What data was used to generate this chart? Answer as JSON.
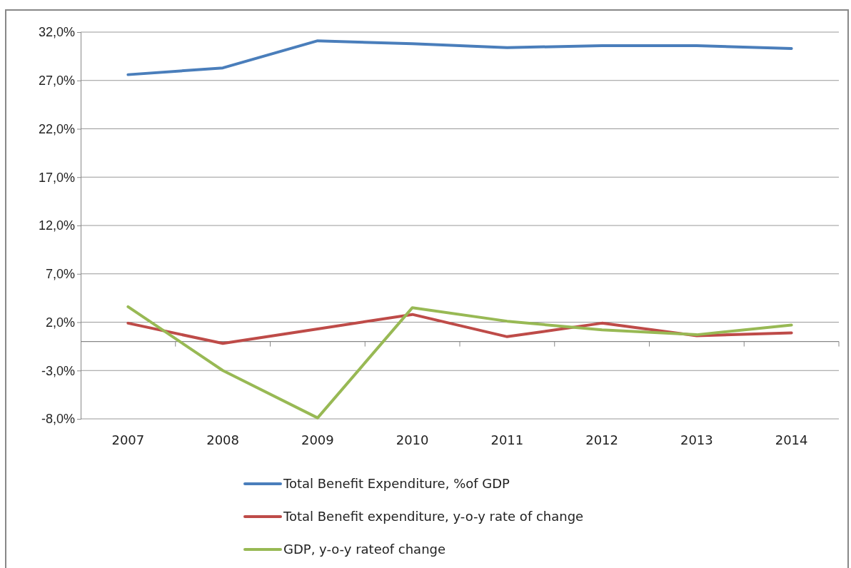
{
  "chart_data": {
    "type": "line",
    "categories": [
      "2007",
      "2008",
      "2009",
      "2010",
      "2011",
      "2012",
      "2013",
      "2014"
    ],
    "series": [
      {
        "name": "Total Benefit Expenditure, %of GDP",
        "color": "#4a7ebb",
        "values": [
          27.6,
          28.3,
          31.1,
          30.8,
          30.4,
          30.6,
          30.6,
          30.3
        ]
      },
      {
        "name": "Total Benefit expenditure, y-o-y rate of change",
        "color": "#be4b48",
        "values": [
          1.9,
          -0.2,
          1.3,
          2.8,
          0.5,
          1.9,
          0.6,
          0.9
        ]
      },
      {
        "name": "GDP, y-o-y rateof change",
        "color": "#98b954",
        "values": [
          3.6,
          -3.0,
          -7.9,
          3.5,
          2.1,
          1.2,
          0.7,
          1.7
        ]
      }
    ],
    "ylim": [
      -8,
      32
    ],
    "yticks": [
      {
        "value": -8,
        "label": "-8,0%"
      },
      {
        "value": -3,
        "label": "-3,0%"
      },
      {
        "value": 2,
        "label": "2,0%"
      },
      {
        "value": 7,
        "label": "7,0%"
      },
      {
        "value": 12,
        "label": "12,0%"
      },
      {
        "value": 17,
        "label": "17,0%"
      },
      {
        "value": 22,
        "label": "22,0%"
      },
      {
        "value": 27,
        "label": "27,0%"
      },
      {
        "value": 32,
        "label": "32,0%"
      }
    ],
    "grid": "y",
    "legend": "bottom",
    "marker": "none",
    "line_style": "solid"
  }
}
